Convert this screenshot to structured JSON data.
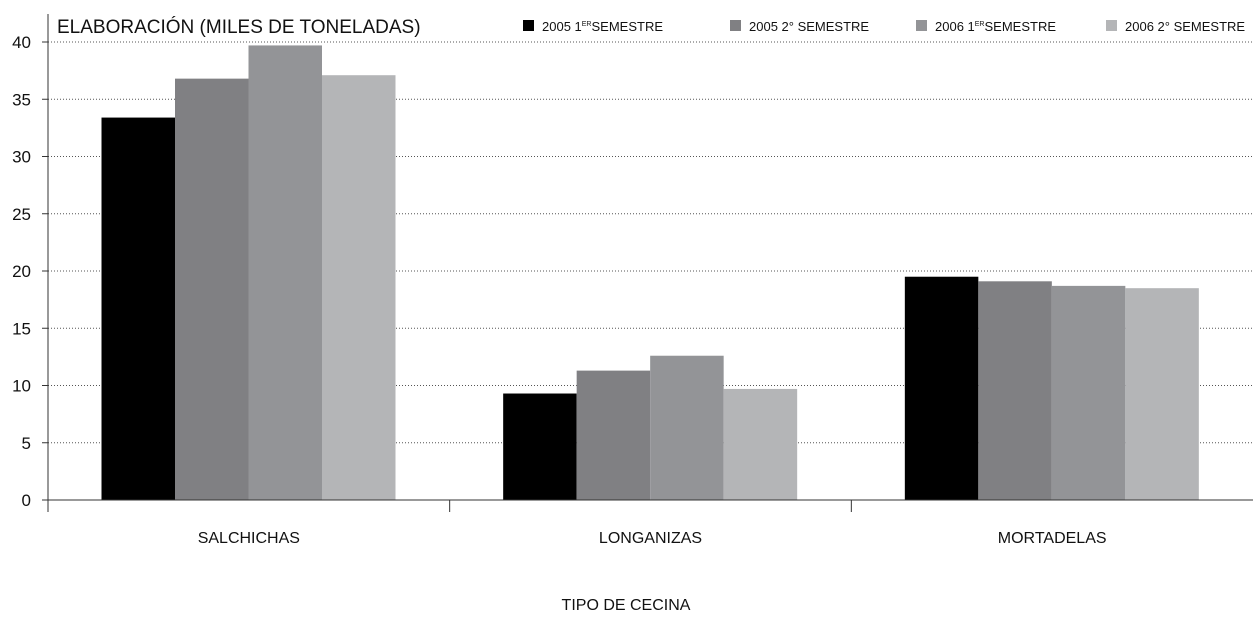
{
  "chart_data": {
    "type": "bar",
    "title": "ELABORACIÓN (MILES DE TONELADAS)",
    "xlabel": "TIPO DE CECINA",
    "ylabel": "",
    "ylim": [
      0,
      40
    ],
    "yticks": [
      0,
      5,
      10,
      15,
      20,
      25,
      30,
      35,
      40
    ],
    "grid": "horizontal-dotted",
    "legend_position": "top",
    "categories": [
      "SALCHICHAS",
      "LONGANIZAS",
      "MORTADELAS"
    ],
    "series": [
      {
        "name": "2005 1ER SEMESTRE",
        "legend_parts": [
          "2005 1",
          "ER",
          "SEMESTRE"
        ],
        "color": "#000000",
        "values": [
          33.4,
          9.3,
          19.5
        ]
      },
      {
        "name": "2005 2° SEMESTRE",
        "legend_parts": [
          "2005 2° SEMESTRE",
          "",
          ""
        ],
        "color": "#808083",
        "values": [
          36.8,
          11.3,
          19.1
        ]
      },
      {
        "name": "2006 1ER SEMESTRE",
        "legend_parts": [
          "2006 1",
          "ER",
          "SEMESTRE"
        ],
        "color": "#939497",
        "values": [
          39.7,
          12.6,
          18.7
        ]
      },
      {
        "name": "2006 2° SEMESTRE",
        "legend_parts": [
          "2006 2° SEMESTRE",
          "",
          ""
        ],
        "color": "#b4b5b7",
        "values": [
          37.1,
          9.7,
          18.5
        ]
      }
    ]
  }
}
